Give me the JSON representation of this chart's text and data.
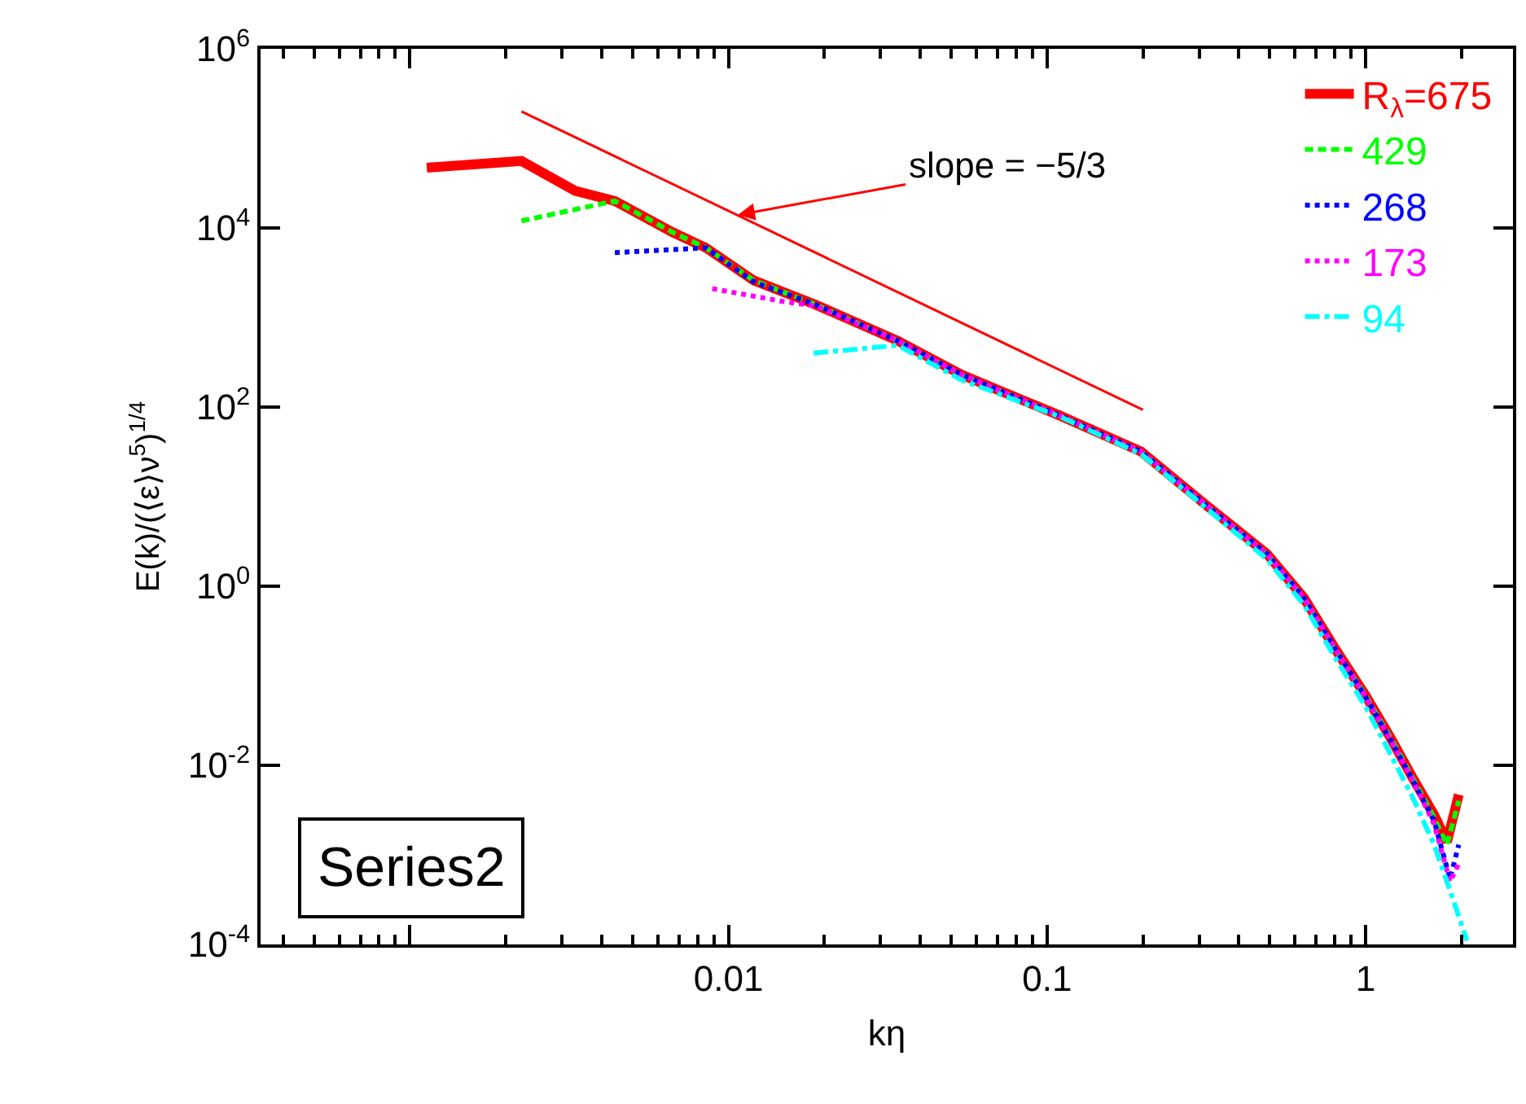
{
  "chart_data": {
    "type": "line",
    "xlabel": "kη",
    "ylabel": "E(k)/(⟨ε⟩ν$^{5}$)$^{1/4}$",
    "log": "xy",
    "grid": false,
    "legend": "top right",
    "xlim": [
      0.00034,
      2.9
    ],
    "xticks": [
      {
        "value": 0.001,
        "label": null
      },
      0.01,
      0.1,
      1
    ],
    "ylim": [
      0.0001,
      1000000
    ],
    "yticks": [
      {
        "value": 0.0001,
        "label": "10$^{-4}$"
      },
      {
        "value": 0.01,
        "label": "10$^{-2}$"
      },
      {
        "value": 1,
        "label": "10$^{0}$"
      },
      {
        "value": 100,
        "label": "10$^{2}$"
      },
      {
        "value": 10000,
        "label": "10$^{4}$"
      },
      {
        "value": 1000000,
        "label": "10$^{6}$"
      }
    ],
    "annotations": [
      {
        "text": "slope = −5/3",
        "x": 0.0107,
        "y": 14000
      },
      "Series2"
    ],
    "series": [
      {
        "name": "R$_{λ}$=675",
        "color": "#ff0000",
        "line_style": "solid",
        "x": [
          0.00113,
          0.00224,
          0.0033,
          0.0044,
          0.0067,
          0.0085,
          0.012,
          0.0187,
          0.034,
          0.054,
          0.11,
          0.197,
          0.315,
          0.49,
          0.64,
          0.81,
          1.0,
          1.2,
          1.4,
          1.64,
          1.8,
          1.96
        ],
        "values": [
          47000,
          56000,
          26000,
          20000,
          8900,
          6000,
          2600,
          1400,
          550,
          230,
          80,
          32,
          8.1,
          2.3,
          0.74,
          0.19,
          0.06,
          0.02,
          0.0074,
          0.0028,
          0.0014,
          0.0047
        ]
      },
      {
        "name": "429",
        "color": "#00ff00",
        "line_style": "dashed",
        "x": [
          0.00224,
          0.0044,
          0.0067,
          0.0085,
          0.012,
          0.0187,
          0.034,
          0.054,
          0.11,
          0.197,
          0.315,
          0.49,
          0.64,
          0.81,
          1.0,
          1.2,
          1.4,
          1.64,
          1.8,
          1.96
        ],
        "values": [
          12000,
          20000,
          8900,
          6000,
          2600,
          1400,
          550,
          230,
          80,
          32,
          8.1,
          2.3,
          0.74,
          0.19,
          0.06,
          0.02,
          0.0074,
          0.0026,
          0.0013,
          0.004
        ]
      },
      {
        "name": "268",
        "color": "#0000ff",
        "line_style": "dotted",
        "x": [
          0.0044,
          0.0085,
          0.012,
          0.0187,
          0.034,
          0.054,
          0.11,
          0.197,
          0.315,
          0.49,
          0.64,
          0.81,
          1.0,
          1.2,
          1.4,
          1.64,
          1.84,
          1.96
        ],
        "values": [
          5300,
          6000,
          2500,
          1400,
          550,
          230,
          80,
          32,
          8.1,
          2.3,
          0.74,
          0.19,
          0.058,
          0.019,
          0.007,
          0.0024,
          0.00054,
          0.0013
        ]
      },
      {
        "name": "173",
        "color": "#ff00ff",
        "line_style": "dotted",
        "x": [
          0.0089,
          0.015,
          0.0187,
          0.034,
          0.054,
          0.11,
          0.197,
          0.315,
          0.49,
          0.64,
          0.81,
          1.0,
          1.2,
          1.4,
          1.64,
          1.84,
          1.96
        ],
        "values": [
          2100,
          1500,
          1350,
          550,
          230,
          80,
          32,
          8.1,
          2.3,
          0.74,
          0.19,
          0.058,
          0.019,
          0.007,
          0.0022,
          0.0005,
          0.0008
        ]
      },
      {
        "name": "94",
        "color": "#00ffff",
        "line_style": "dashdot",
        "x": [
          0.0185,
          0.034,
          0.054,
          0.11,
          0.197,
          0.315,
          0.49,
          0.64,
          0.81,
          1.0,
          1.2,
          1.4,
          1.64,
          1.84,
          2.08
        ],
        "values": [
          400,
          490,
          200,
          78,
          30,
          7.5,
          2.0,
          0.62,
          0.15,
          0.045,
          0.013,
          0.0045,
          0.0013,
          0.0004,
          0.00011
        ]
      },
      {
        "type": "line",
        "color": "#ff0000",
        "line_style": "solid",
        "x": [
          0.00224,
          0.2
        ],
        "values": [
          200000,
          93
        ]
      }
    ]
  }
}
